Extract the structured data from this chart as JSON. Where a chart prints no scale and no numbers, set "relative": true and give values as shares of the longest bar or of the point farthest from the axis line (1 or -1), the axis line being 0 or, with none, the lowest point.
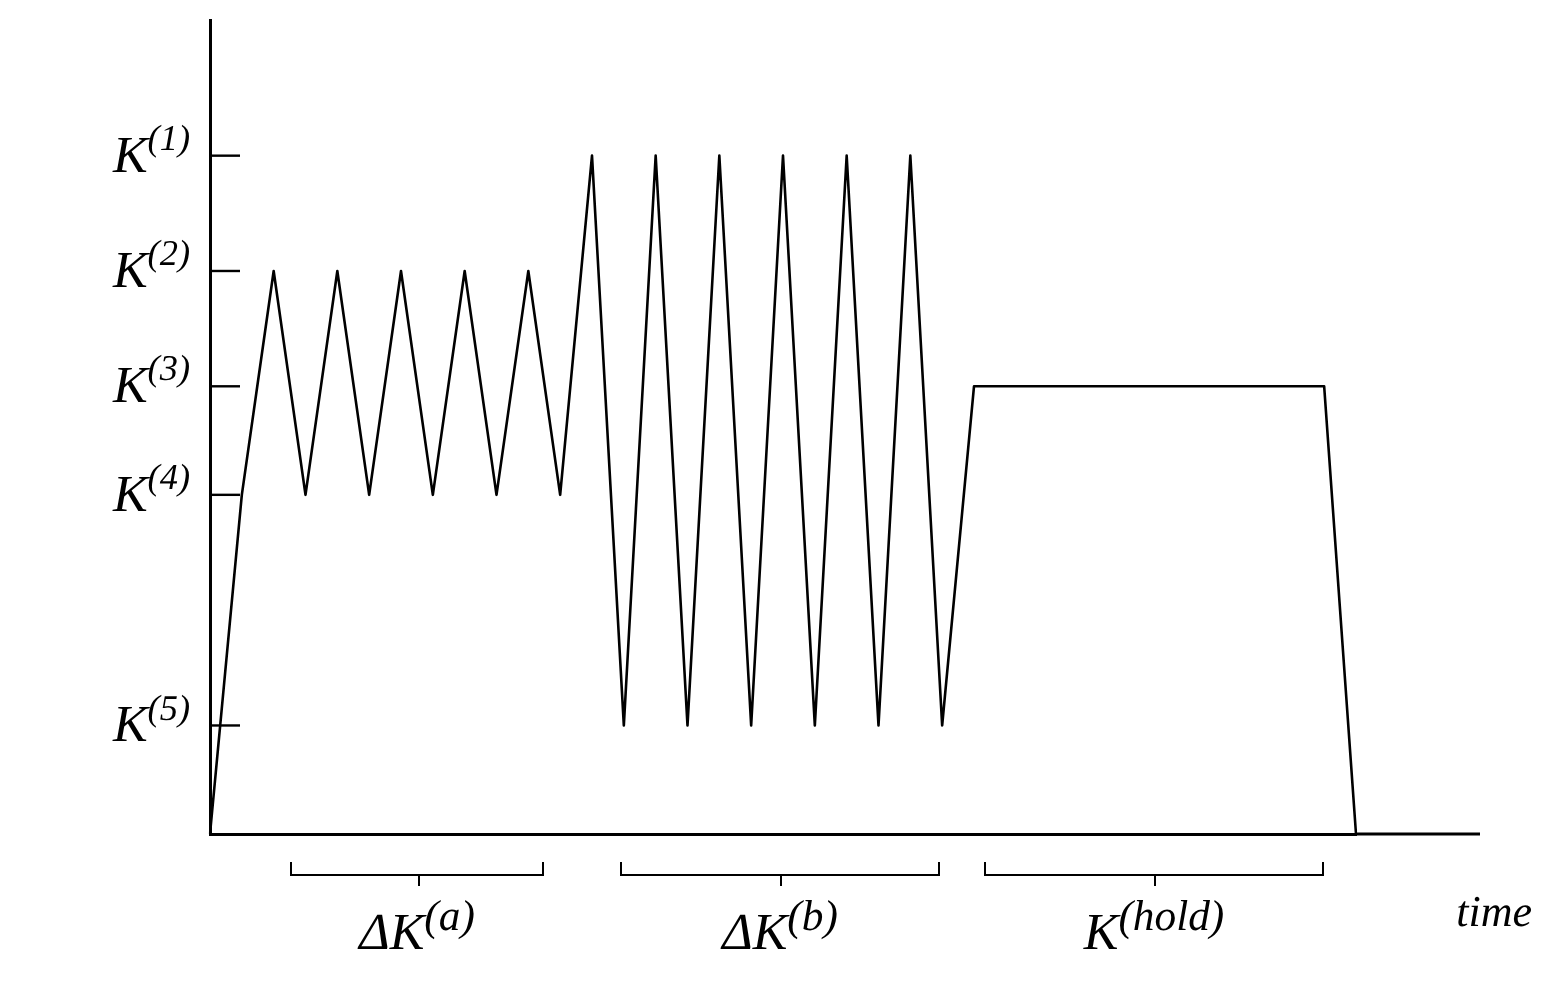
{
  "chart_data": {
    "type": "line",
    "xlabel": "time",
    "relative": true,
    "categories": [
      null,
      null,
      null,
      null,
      null,
      null,
      null,
      null,
      null,
      null,
      null,
      null,
      null,
      null,
      null,
      null,
      null,
      null,
      null,
      null,
      null,
      null,
      null,
      null,
      null,
      null,
      null,
      null,
      null,
      null,
      null,
      null,
      null,
      null,
      null,
      null,
      null
    ],
    "values": [
      0,
      0.5,
      0.83,
      0.5,
      0.83,
      0.5,
      0.83,
      0.5,
      0.83,
      0.5,
      0.83,
      0.5,
      1,
      0.16,
      1,
      0.16,
      1,
      0.16,
      1,
      0.16,
      1,
      0.16,
      1,
      0.16,
      0.66,
      0.66,
      0.66,
      0.66,
      0.66,
      0.66,
      0.66,
      0.66,
      0.66,
      0.66,
      0.66,
      0.66,
      0
    ],
    "color": "#000000",
    "ref_lines": [
      {
        "axis": "y",
        "value": 1,
        "label": "K$^{(1)}$"
      },
      {
        "axis": "y",
        "value": 0.83,
        "label": "K$^{(2)}$"
      },
      {
        "axis": "y",
        "value": 0.66,
        "label": "K$^{(3)}$"
      },
      {
        "axis": "y",
        "value": 0.5,
        "label": "K$^{(4)}$"
      },
      {
        "axis": "y",
        "value": 0.16,
        "label": "K$^{(5)}$"
      }
    ],
    "annotations": [
      "ΔK$^{(a)}$",
      "ΔK$^{(b)}$",
      "K$^{(hold)}$"
    ],
    "grid": false,
    "legend": false,
    "marker": "none",
    "line_style": "solid"
  }
}
